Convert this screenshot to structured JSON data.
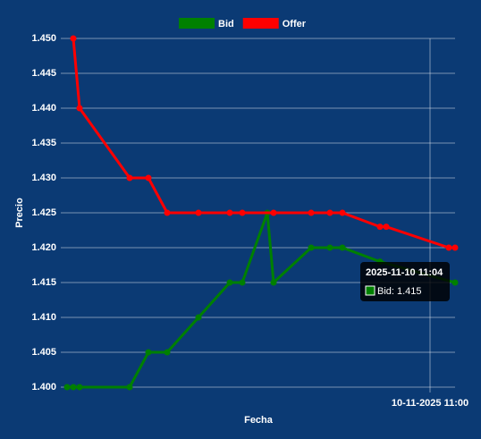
{
  "chart_data": {
    "type": "line",
    "x_label": "Fecha",
    "y_label": "Precio",
    "xlim": [
      "10-11-2025 10:01",
      "10-11-2025 11:04"
    ],
    "xticks": [
      "10-11-2025 11:00"
    ],
    "ylim": [
      1.4,
      1.45
    ],
    "yticks": [
      {
        "value": 1.4,
        "label": "1.400"
      },
      1.405,
      {
        "value": 1.41,
        "label": "1.410"
      },
      1.415,
      {
        "value": 1.42,
        "label": "1.420"
      },
      1.425,
      {
        "value": 1.43,
        "label": "1.430"
      },
      1.435,
      {
        "value": 1.44,
        "label": "1.440"
      },
      1.445,
      {
        "value": 1.45,
        "label": "1.450"
      }
    ],
    "grid": true,
    "legend": "top",
    "series": [
      {
        "name": "Bid",
        "color": "#008000",
        "x": [
          "10-11-2025 10:02",
          "10-11-2025 10:03",
          "10-11-2025 10:04",
          "10-11-2025 10:12",
          "10-11-2025 10:15",
          "10-11-2025 10:18",
          "10-11-2025 10:23",
          "10-11-2025 10:28",
          "10-11-2025 10:30",
          "10-11-2025 10:34",
          "10-11-2025 10:35",
          "10-11-2025 10:41",
          "10-11-2025 10:44",
          "10-11-2025 10:46",
          "10-11-2025 10:52",
          "10-11-2025 11:04"
        ],
        "values": [
          1.4,
          1.4,
          1.4,
          1.4,
          1.405,
          1.405,
          1.41,
          1.415,
          1.415,
          1.425,
          1.415,
          1.42,
          1.42,
          1.42,
          1.418,
          1.415
        ]
      },
      {
        "name": "Offer",
        "color": "#ff0000",
        "x": [
          "10-11-2025 10:03",
          "10-11-2025 10:04",
          "10-11-2025 10:12",
          "10-11-2025 10:15",
          "10-11-2025 10:18",
          "10-11-2025 10:23",
          "10-11-2025 10:28",
          "10-11-2025 10:30",
          "10-11-2025 10:35",
          "10-11-2025 10:41",
          "10-11-2025 10:44",
          "10-11-2025 10:46",
          "10-11-2025 10:52",
          "10-11-2025 10:53",
          "10-11-2025 11:03",
          "10-11-2025 11:04"
        ],
        "values": [
          1.45,
          1.44,
          1.43,
          1.43,
          1.425,
          1.425,
          1.425,
          1.425,
          1.425,
          1.425,
          1.425,
          1.425,
          1.423,
          1.423,
          1.42,
          1.42
        ]
      }
    ],
    "tooltip": {
      "title": "2025-11-10 11:04",
      "label": "Bid: 1.415"
    }
  }
}
